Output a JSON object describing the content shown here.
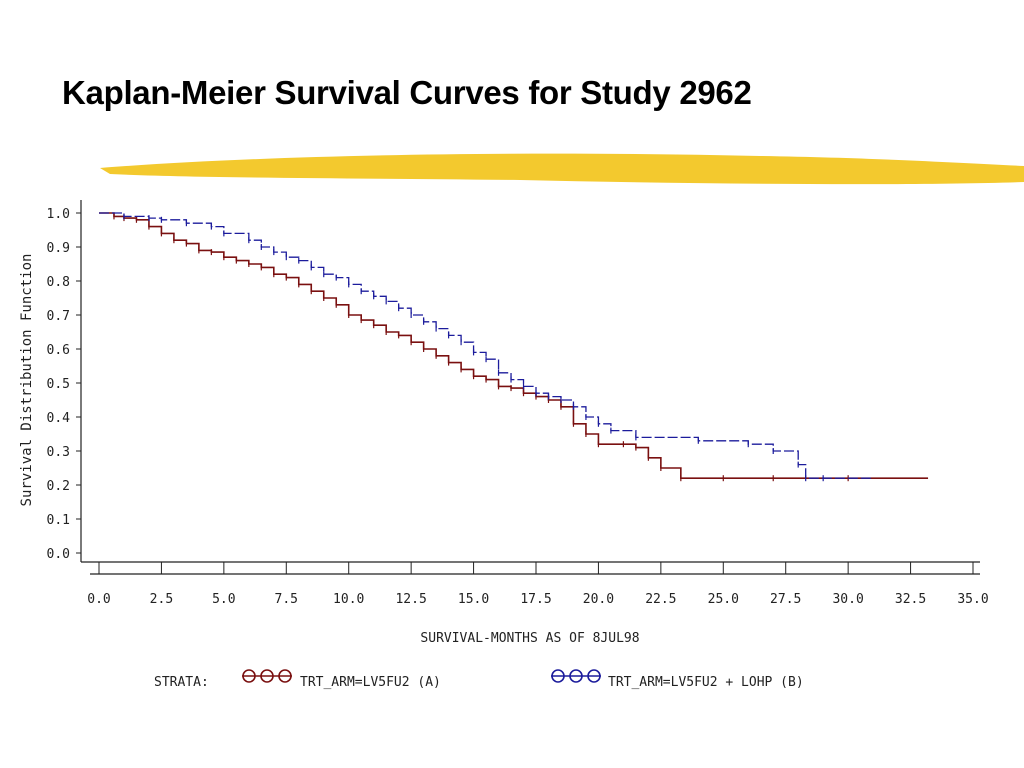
{
  "slide": {
    "title": "Kaplan-Meier Survival Curves for Study 2962",
    "accent": "#F2C41C"
  },
  "chart_data": {
    "type": "line",
    "title": "",
    "xlabel": "SURVIVAL-MONTHS AS OF 8JUL98",
    "ylabel": "Survival Distribution Function",
    "xlim": [
      0,
      35
    ],
    "ylim": [
      0,
      1
    ],
    "xticks": [
      "0.0",
      "2.5",
      "5.0",
      "7.5",
      "10.0",
      "12.5",
      "15.0",
      "17.5",
      "20.0",
      "22.5",
      "25.0",
      "27.5",
      "30.0",
      "32.5",
      "35.0"
    ],
    "yticks": [
      "0.0",
      "0.1",
      "0.2",
      "0.3",
      "0.4",
      "0.5",
      "0.6",
      "0.7",
      "0.8",
      "0.9",
      "1.0"
    ],
    "grid": false,
    "legend": {
      "prefix": "STRATA:",
      "position": "bottom",
      "entries": [
        {
          "label": "TRT_ARM=LV5FU2 (A)",
          "color": "#7A1010"
        },
        {
          "label": "TRT_ARM=LV5FU2 + LOHP (B)",
          "color": "#1C1C9C"
        }
      ]
    },
    "series": [
      {
        "name": "TRT_ARM=LV5FU2 (A)",
        "color": "#7A1010",
        "style": "solid",
        "x": [
          0,
          0.6,
          1,
          1.5,
          2,
          2.5,
          3,
          3.5,
          4,
          4.5,
          5,
          5.5,
          6,
          6.5,
          7,
          7.5,
          8,
          8.5,
          9,
          9.5,
          10,
          10.5,
          11,
          11.5,
          12,
          12.5,
          13,
          13.5,
          14,
          14.5,
          15,
          15.5,
          16,
          16.5,
          17,
          17.5,
          18,
          18.5,
          19,
          19.5,
          20,
          21,
          21.5,
          22,
          22.5,
          23.3,
          25,
          27,
          30,
          33.2
        ],
        "y": [
          1,
          0.99,
          0.985,
          0.98,
          0.96,
          0.94,
          0.92,
          0.91,
          0.89,
          0.885,
          0.87,
          0.86,
          0.85,
          0.84,
          0.82,
          0.81,
          0.79,
          0.77,
          0.75,
          0.73,
          0.7,
          0.685,
          0.67,
          0.65,
          0.64,
          0.62,
          0.6,
          0.58,
          0.56,
          0.54,
          0.52,
          0.51,
          0.49,
          0.485,
          0.47,
          0.46,
          0.45,
          0.43,
          0.38,
          0.35,
          0.32,
          0.32,
          0.31,
          0.28,
          0.25,
          0.22,
          0.22,
          0.22,
          0.22,
          0.22
        ]
      },
      {
        "name": "TRT_ARM=LV5FU2 + LOHP (B)",
        "color": "#1C1C9C",
        "style": "dashed",
        "x": [
          0,
          1,
          2,
          2.5,
          3.5,
          4.5,
          5,
          6,
          6.5,
          7,
          7.5,
          8,
          8.5,
          9,
          9.5,
          10,
          10.5,
          11,
          11.5,
          12,
          12.5,
          13,
          13.5,
          14,
          14.5,
          15,
          15.5,
          16,
          16.5,
          17,
          17.5,
          18,
          18.5,
          19,
          19.5,
          20,
          20.5,
          21.5,
          24,
          26,
          27,
          28,
          28.3,
          29,
          31
        ],
        "y": [
          1,
          0.99,
          0.985,
          0.98,
          0.97,
          0.96,
          0.94,
          0.92,
          0.9,
          0.885,
          0.87,
          0.86,
          0.84,
          0.82,
          0.81,
          0.79,
          0.77,
          0.755,
          0.74,
          0.72,
          0.7,
          0.68,
          0.66,
          0.64,
          0.62,
          0.59,
          0.57,
          0.53,
          0.51,
          0.49,
          0.47,
          0.46,
          0.45,
          0.43,
          0.4,
          0.38,
          0.36,
          0.34,
          0.33,
          0.32,
          0.3,
          0.26,
          0.22,
          0.22,
          0.22
        ]
      }
    ]
  }
}
